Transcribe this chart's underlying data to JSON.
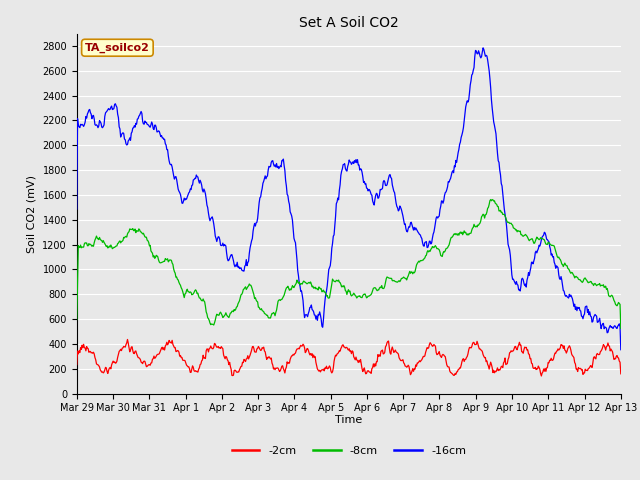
{
  "title": "Set A Soil CO2",
  "ylabel": "Soil CO2 (mV)",
  "xlabel": "Time",
  "legend_label": "TA_soilco2",
  "series_labels": [
    "-2cm",
    "-8cm",
    "-16cm"
  ],
  "series_colors": [
    "#ff0000",
    "#00bb00",
    "#0000ff"
  ],
  "ylim": [
    0,
    2900
  ],
  "yticks": [
    0,
    200,
    400,
    600,
    800,
    1000,
    1200,
    1400,
    1600,
    1800,
    2000,
    2200,
    2400,
    2600,
    2800
  ],
  "xtick_labels": [
    "Mar 29",
    "Mar 30",
    "Mar 31",
    "Apr 1",
    "Apr 2",
    "Apr 3",
    "Apr 4",
    "Apr 5",
    "Apr 6",
    "Apr 7",
    "Apr 8",
    "Apr 9",
    "Apr 10",
    "Apr 11",
    "Apr 12",
    "Apr 13"
  ],
  "bg_color": "#e8e8e8",
  "grid_color": "#ffffff",
  "legend_box_facecolor": "#ffffcc",
  "legend_box_edgecolor": "#cc8800",
  "legend_text_color": "#990000",
  "title_fontsize": 10,
  "axis_fontsize": 8,
  "tick_fontsize": 7
}
